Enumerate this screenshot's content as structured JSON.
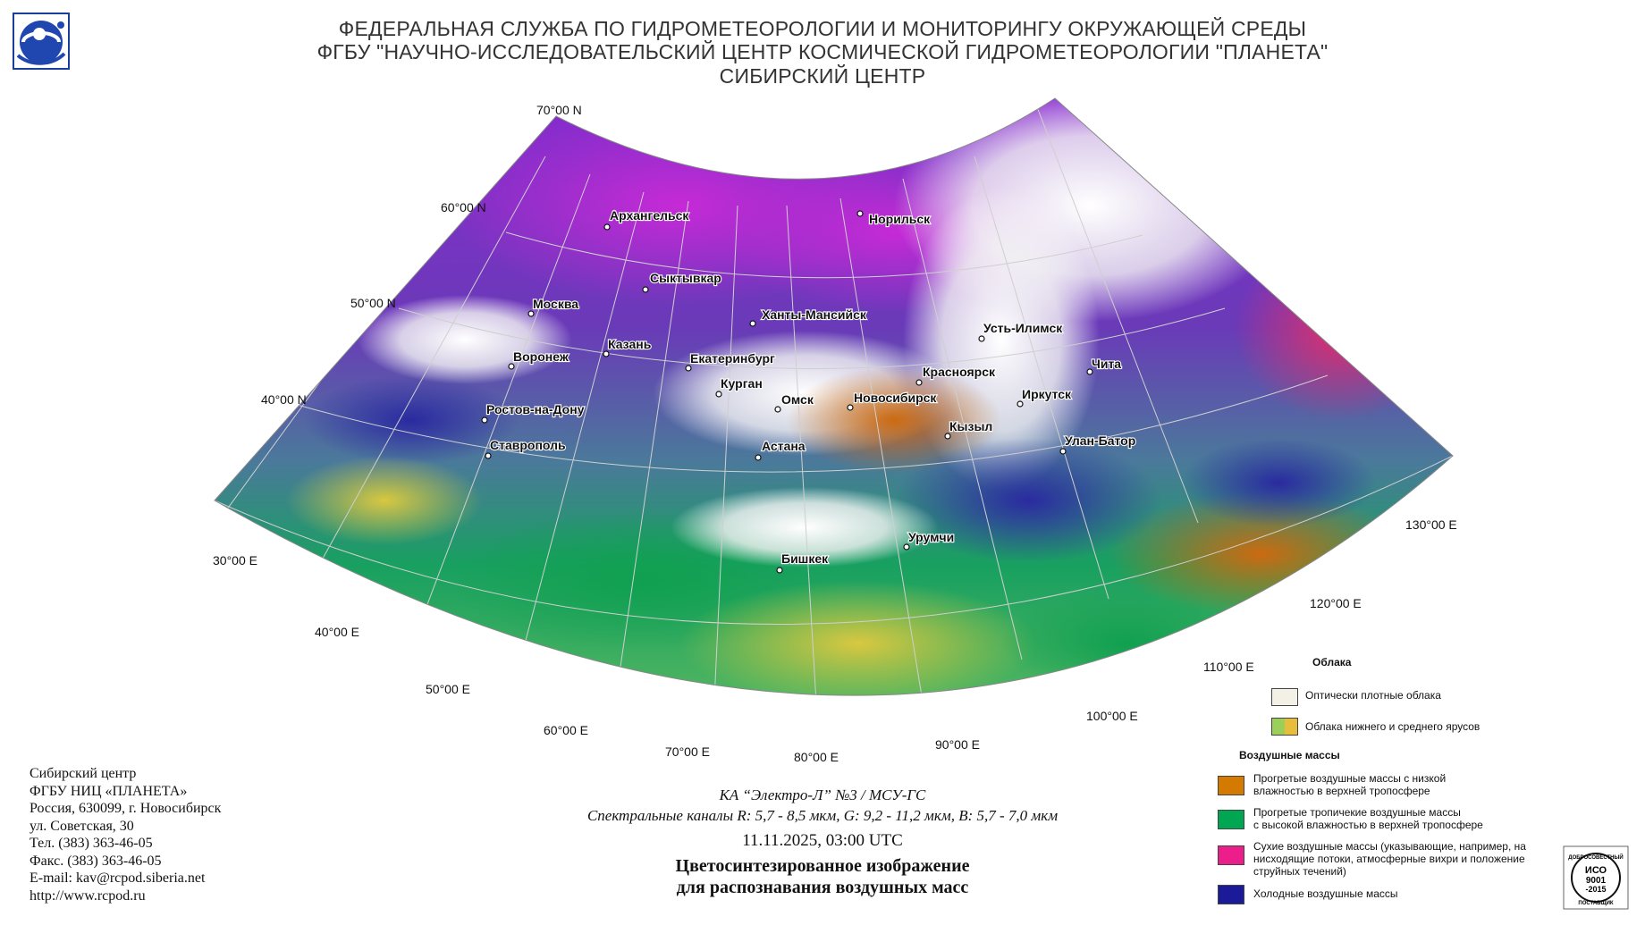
{
  "header": {
    "line1": "ФЕДЕРАЛЬНАЯ СЛУЖБА ПО ГИДРОМЕТЕОРОЛОГИИ И МОНИТОРИНГУ ОКРУЖАЮЩЕЙ СРЕДЫ",
    "line2": "ФГБУ \"НАУЧНО-ИССЛЕДОВАТЕЛЬСКИЙ ЦЕНТР КОСМИЧЕСКОЙ ГИДРОМЕТЕОРОЛОГИИ \"ПЛАНЕТА\"",
    "line3": "СИБИРСКИЙ ЦЕНТР"
  },
  "logo_icon": "planeta-logo-icon",
  "map": {
    "latitude_labels": [
      "70°00 N",
      "60°00 N",
      "50°00 N",
      "40°00 N"
    ],
    "longitude_labels": [
      "30°00 E",
      "40°00 E",
      "50°00 E",
      "60°00 E",
      "70°00 E",
      "80°00 E",
      "90°00 E",
      "100°00 E",
      "110°00 E",
      "120°00 E",
      "130°00 E"
    ],
    "cities": [
      "Архангельск",
      "Норильск",
      "Сыктывкар",
      "Москва",
      "Ханты-Мансийск",
      "Усть-Илимск",
      "Казань",
      "Воронеж",
      "Екатеринбург",
      "Красноярск",
      "Чита",
      "Курган",
      "Омск",
      "Новосибирск",
      "Иркутск",
      "Ростов-на-Дону",
      "Кызыл",
      "Улан-Батор",
      "Ставрополь",
      "Астана",
      "Урумчи",
      "Бишкек"
    ]
  },
  "legend": {
    "clouds_title": "Облака",
    "dense_clouds": "Оптически плотные облака",
    "low_mid_clouds": "Облака нижнего и среднего ярусов",
    "air_masses_title": "Воздушные массы",
    "warm_dry": [
      "Прогретые воздушные массы с низкой",
      "влажностью в верхней тропосфере"
    ],
    "warm_moist": [
      "Прогретые тропичекие воздушные массы",
      "с высокой влажностью в верхней тропосфере"
    ],
    "dry": [
      "Сухие воздушные массы (указывающие, например, на",
      "нисходящие потоки, атмосферные вихри и положение",
      "струйных течений)"
    ],
    "cold": "Холодные воздушные массы",
    "colors": {
      "dense": "#f3f1e6",
      "low_mid_a": "#9bcf5a",
      "low_mid_b": "#e6bd3c",
      "warm_dry": "#d47a00",
      "warm_moist": "#00a651",
      "dry": "#ec1e8c",
      "cold": "#1b1b99"
    }
  },
  "contacts": [
    "Сибирский центр",
    "ФГБУ НИЦ «ПЛАНЕТА»",
    "Россия, 630099, г. Новосибирск",
    "ул. Советская, 30",
    "Тел. (383) 363-46-05",
    "Факс. (383) 363-46-05",
    "E-mail: kav@rcpod.siberia.net",
    "http://www.rcpod.ru"
  ],
  "caption": {
    "satellite": "КА “Электро-Л” №3 / МСУ-ГС",
    "channels": "Спектральные каналы R: 5,7 - 8,5 мкм, G: 9,2 - 11,2 мкм, B: 5,7 - 7,0 мкм",
    "datetime": "11.11.2025, 03:00 UTC",
    "title1": "Цветосинтезированное изображение",
    "title2": "для распознавания воздушных масс"
  },
  "iso_badge": {
    "top": "ДОБРОСОВЕСТНЫЙ",
    "line1": "ИСО",
    "line2": "9001",
    "line3": "-2015",
    "bottom": "ПОСТАВЩИК"
  }
}
